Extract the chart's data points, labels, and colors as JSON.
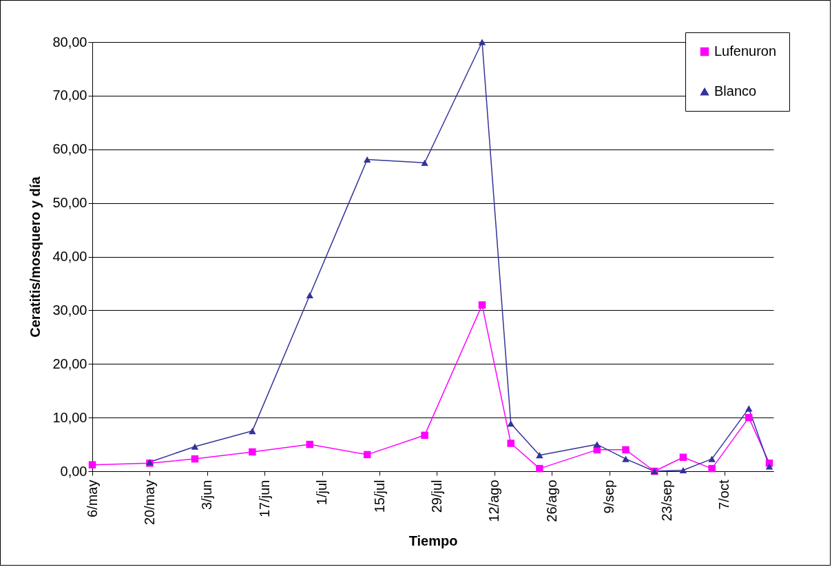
{
  "chart_data": {
    "type": "line",
    "xlabel": "Tiempo",
    "ylabel": "Ceratitis/mosquero y día",
    "x": [
      "--05-06",
      "--05-20",
      "--05-31",
      "--06-14",
      "--06-28",
      "--07-12",
      "--07-26",
      "--08-09",
      "--08-16",
      "--08-23",
      "--09-06",
      "--09-13",
      "--09-20",
      "--09-27",
      "--10-04",
      "--10-13",
      "--10-18"
    ],
    "series": [
      {
        "name": "Lufenuron",
        "color": "#ff00ff",
        "marker": "square",
        "values": [
          1.2,
          1.5,
          2.3,
          3.6,
          5.0,
          3.1,
          6.7,
          31.0,
          5.2,
          0.5,
          4.0,
          4.0,
          0.0,
          2.6,
          0.5,
          10.0,
          1.5
        ]
      },
      {
        "name": "Blanco",
        "color": "#333399",
        "marker": "triangle",
        "values": [
          null,
          1.7,
          4.6,
          7.5,
          32.8,
          58.1,
          57.5,
          80.0,
          8.9,
          3.0,
          5.0,
          2.3,
          0.0,
          0.2,
          2.3,
          11.7,
          0.9
        ]
      }
    ],
    "xlim": [
      "--05-06",
      "--10-19"
    ],
    "xticks": [
      {
        "value": "--05-06",
        "label": "6/may"
      },
      {
        "value": "--05-20",
        "label": "20/may"
      },
      {
        "value": "--06-03",
        "label": "3/jun"
      },
      {
        "value": "--06-17",
        "label": "17/jun"
      },
      {
        "value": "--07-01",
        "label": "1/jul"
      },
      {
        "value": "--07-15",
        "label": "15/jul"
      },
      {
        "value": "--07-29",
        "label": "29/jul"
      },
      {
        "value": "--08-12",
        "label": "12/ago"
      },
      {
        "value": "--08-26",
        "label": "26/ago"
      },
      {
        "value": "--09-09",
        "label": "9/sep"
      },
      {
        "value": "--09-23",
        "label": "23/sep"
      },
      {
        "value": "--10-07",
        "label": "7/oct"
      }
    ],
    "ylim": [
      0,
      80
    ],
    "yticks": [
      {
        "value": 0,
        "label": "0,00"
      },
      {
        "value": 10,
        "label": "10,00"
      },
      {
        "value": 20,
        "label": "20,00"
      },
      {
        "value": 30,
        "label": "30,00"
      },
      {
        "value": 40,
        "label": "40,00"
      },
      {
        "value": 50,
        "label": "50,00"
      },
      {
        "value": 60,
        "label": "60,00"
      },
      {
        "value": 70,
        "label": "70,00"
      },
      {
        "value": 80,
        "label": "80,00"
      }
    ],
    "grid": "y",
    "legend": "top right",
    "line_style": "solid"
  }
}
